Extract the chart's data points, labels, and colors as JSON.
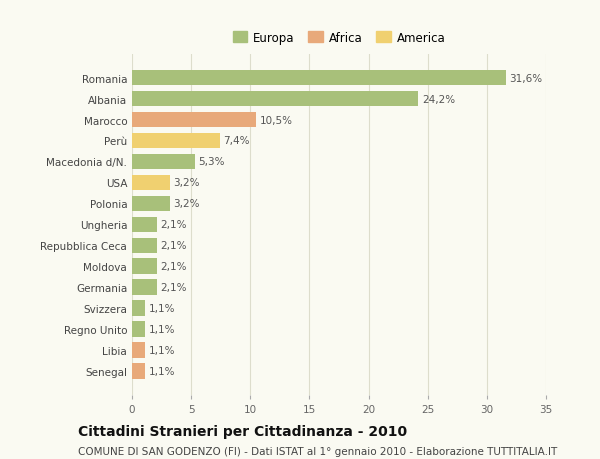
{
  "categories": [
    "Romania",
    "Albania",
    "Marocco",
    "Perù",
    "Macedonia d/N.",
    "USA",
    "Polonia",
    "Ungheria",
    "Repubblica Ceca",
    "Moldova",
    "Germania",
    "Svizzera",
    "Regno Unito",
    "Libia",
    "Senegal"
  ],
  "values": [
    31.6,
    24.2,
    10.5,
    7.4,
    5.3,
    3.2,
    3.2,
    2.1,
    2.1,
    2.1,
    2.1,
    1.1,
    1.1,
    1.1,
    1.1
  ],
  "labels": [
    "31,6%",
    "24,2%",
    "10,5%",
    "7,4%",
    "5,3%",
    "3,2%",
    "3,2%",
    "2,1%",
    "2,1%",
    "2,1%",
    "2,1%",
    "1,1%",
    "1,1%",
    "1,1%",
    "1,1%"
  ],
  "colors": [
    "#a8c07a",
    "#a8c07a",
    "#e8a97a",
    "#f0d070",
    "#a8c07a",
    "#f0d070",
    "#a8c07a",
    "#a8c07a",
    "#a8c07a",
    "#a8c07a",
    "#a8c07a",
    "#a8c07a",
    "#a8c07a",
    "#e8a97a",
    "#e8a97a"
  ],
  "legend": [
    {
      "label": "Europa",
      "color": "#a8c07a"
    },
    {
      "label": "Africa",
      "color": "#e8a97a"
    },
    {
      "label": "America",
      "color": "#f0d070"
    }
  ],
  "xlim": [
    0,
    35
  ],
  "xticks": [
    0,
    5,
    10,
    15,
    20,
    25,
    30,
    35
  ],
  "title": "Cittadini Stranieri per Cittadinanza - 2010",
  "subtitle": "COMUNE DI SAN GODENZO (FI) - Dati ISTAT al 1° gennaio 2010 - Elaborazione TUTTITALIA.IT",
  "background_color": "#fafaf2",
  "grid_color": "#ddddcc",
  "bar_height": 0.75,
  "label_fontsize": 7.5,
  "ytick_fontsize": 7.5,
  "xtick_fontsize": 7.5,
  "legend_fontsize": 8.5,
  "title_fontsize": 10,
  "subtitle_fontsize": 7.5
}
